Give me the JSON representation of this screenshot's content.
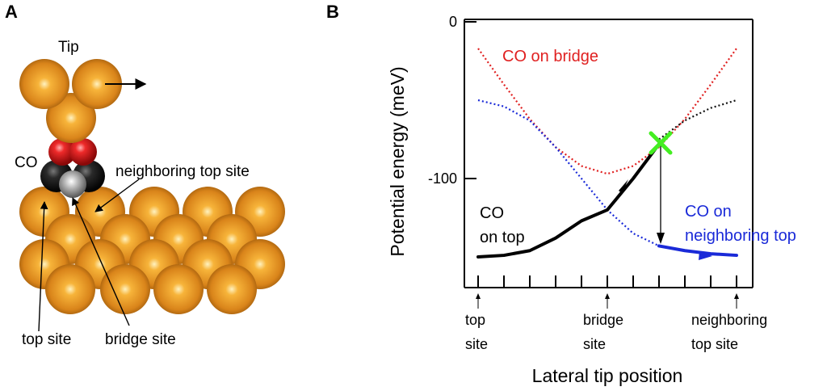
{
  "panel_a": {
    "letter": "A",
    "tip_label": "Tip",
    "co_label": "CO",
    "neighboring_top_site_label": "neighboring top site",
    "top_site_label": "top site",
    "bridge_site_label": "bridge site",
    "colors": {
      "copper": "#e08a1a",
      "oxygen": "#e01818",
      "carbon": "#1a1a1a"
    }
  },
  "panel_b": {
    "letter": "B",
    "ylabel": "Potential energy (meV)",
    "xlabel": "Lateral tip position",
    "ytick_labels": [
      "0",
      "-100"
    ],
    "xtick_labels": {
      "top_site": [
        "top",
        "site"
      ],
      "bridge_site": [
        "bridge",
        "site"
      ],
      "neighboring_top_site": [
        "neighboring",
        "top site"
      ]
    },
    "curve_labels": {
      "co_on_bridge": "CO on bridge",
      "co_on_top": [
        "CO",
        "on top"
      ],
      "co_on_neighboring_top": [
        "CO on",
        "neighboring top"
      ]
    }
  },
  "chart_data": {
    "type": "line",
    "title": "",
    "xlabel": "Lateral tip position",
    "ylabel": "Potential energy (meV)",
    "xlim": [
      0,
      1
    ],
    "ylim": [
      -174,
      0
    ],
    "x_tick_labels": [
      "top site",
      "bridge site",
      "neighboring top site"
    ],
    "y_ticks": [
      0,
      -100
    ],
    "series": [
      {
        "name": "CO on bridge",
        "style": "dotted",
        "color": "#e02020",
        "x": [
          0,
          0.1,
          0.2,
          0.3,
          0.4,
          0.5,
          0.6,
          0.7,
          0.8,
          0.9,
          1.0
        ],
        "y": [
          -17,
          -40,
          -62,
          -80,
          -92,
          -97,
          -92,
          -80,
          -62,
          -40,
          -17
        ]
      },
      {
        "name": "CO on top",
        "style": "dotted",
        "color": "#1a2ad8",
        "x": [
          0,
          0.1,
          0.2,
          0.3,
          0.4,
          0.5,
          0.6,
          0.7,
          0.8,
          0.9,
          1.0
        ],
        "y": [
          -50,
          -54,
          -63,
          -80,
          -100,
          -120,
          -135,
          -143,
          -146,
          -148,
          -149
        ]
      },
      {
        "name": "",
        "style": "dotted",
        "color": "#111111",
        "x": [
          0.7,
          0.8,
          0.9,
          1.0
        ],
        "y": [
          -75,
          -63,
          -55,
          -50
        ]
      },
      {
        "name": "",
        "style": "solid",
        "color": "#000000",
        "x": [
          0,
          0.1,
          0.2,
          0.3,
          0.4,
          0.5,
          0.6,
          0.7
        ],
        "y": [
          -150,
          -149,
          -146,
          -138,
          -127,
          -120,
          -100,
          -78
        ]
      },
      {
        "name": "",
        "style": "solid",
        "color": "#1a2ad8",
        "x": [
          0.7,
          0.8,
          0.9,
          1.0
        ],
        "y": [
          -143,
          -146,
          -148,
          -149
        ]
      }
    ],
    "annotations": [
      {
        "type": "crossing",
        "x": 0.7,
        "y": -78,
        "color": "#44ee22"
      },
      {
        "type": "jump",
        "from": [
          0.7,
          -78
        ],
        "to": [
          0.7,
          -143
        ]
      }
    ]
  }
}
